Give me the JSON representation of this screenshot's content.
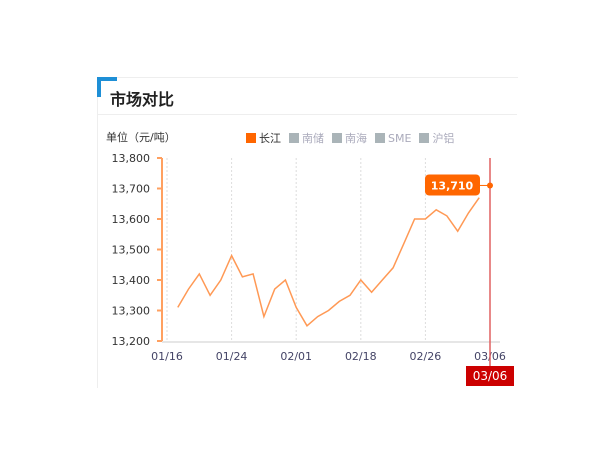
{
  "panel": {
    "title": "市场对比",
    "unit": "单位（元/吨）"
  },
  "legend": [
    {
      "label": "长江",
      "color": "#ff6600",
      "active": true
    },
    {
      "label": "南储",
      "color": "#aab4b8",
      "active": false
    },
    {
      "label": "南海",
      "color": "#aab4b8",
      "active": false
    },
    {
      "label": "SME",
      "color": "#aab4b8",
      "active": false
    },
    {
      "label": "沪铝",
      "color": "#aab4b8",
      "active": false
    }
  ],
  "chart_data": {
    "type": "line",
    "title": "",
    "ylim": [
      13200,
      13800
    ],
    "yticks": [
      "13,200",
      "13,300",
      "13,400",
      "13,500",
      "13,600",
      "13,700",
      "13,800"
    ],
    "xticks": [
      {
        "label": "01/16",
        "index": 0
      },
      {
        "label": "01/24",
        "index": 6
      },
      {
        "label": "02/01",
        "index": 12
      },
      {
        "label": "02/18",
        "index": 18
      },
      {
        "label": "02/26",
        "index": 24
      },
      {
        "label": "03/06",
        "index": 30
      }
    ],
    "series": [
      {
        "name": "长江",
        "color": "#ff9955",
        "start_index": 1,
        "values": [
          13310,
          13370,
          13420,
          13350,
          13400,
          13480,
          13410,
          13420,
          13280,
          13370,
          13400,
          13310,
          13250,
          13280,
          13300,
          13330,
          13350,
          13400,
          13360,
          13400,
          13440,
          13520,
          13600,
          13600,
          13630,
          13610,
          13560,
          13620,
          13670,
          13710
        ]
      }
    ],
    "tooltip": {
      "value": "13,710",
      "date": "03/06"
    },
    "grid": "vertical dashed"
  }
}
